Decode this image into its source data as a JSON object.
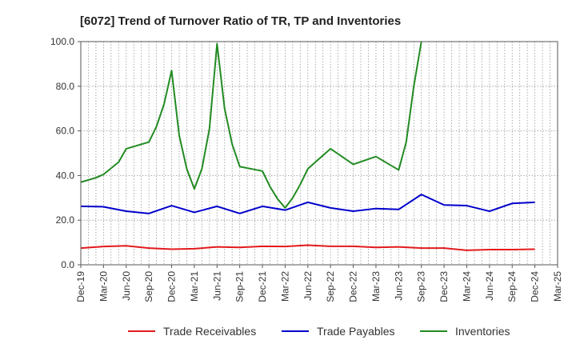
{
  "chart_data": {
    "type": "line",
    "title": "[6072]  Trend of Turnover Ratio of TR, TP and Inventories",
    "xlabel": "",
    "ylabel": "",
    "ylim": [
      0,
      100
    ],
    "grid": true,
    "legend_position": "bottom",
    "y_ticks": [
      "0.0",
      "20.0",
      "40.0",
      "60.0",
      "80.0",
      "100.0"
    ],
    "x_ticks": [
      "Dec-19",
      "Mar-20",
      "Jun-20",
      "Sep-20",
      "Dec-20",
      "Mar-21",
      "Jun-21",
      "Sep-21",
      "Dec-21",
      "Mar-22",
      "Jun-22",
      "Sep-22",
      "Dec-22",
      "Mar-23",
      "Jun-23",
      "Sep-23",
      "Dec-23",
      "Mar-24",
      "Jun-24",
      "Sep-24",
      "Dec-24",
      "Mar-25"
    ],
    "series": [
      {
        "name": "Trade Receivables",
        "color": "#e31a1c",
        "points": [
          [
            "Dec-19",
            7.5
          ],
          [
            "Mar-20",
            8.2
          ],
          [
            "Jun-20",
            8.5
          ],
          [
            "Sep-20",
            7.5
          ],
          [
            "Dec-20",
            7.0
          ],
          [
            "Mar-21",
            7.2
          ],
          [
            "Jun-21",
            8.0
          ],
          [
            "Sep-21",
            7.8
          ],
          [
            "Dec-21",
            8.3
          ],
          [
            "Mar-22",
            8.2
          ],
          [
            "Jun-22",
            8.8
          ],
          [
            "Sep-22",
            8.3
          ],
          [
            "Dec-22",
            8.3
          ],
          [
            "Mar-23",
            7.8
          ],
          [
            "Jun-23",
            8.0
          ],
          [
            "Sep-23",
            7.5
          ],
          [
            "Dec-23",
            7.5
          ],
          [
            "Mar-24",
            6.5
          ],
          [
            "Jun-24",
            6.8
          ],
          [
            "Sep-24",
            6.8
          ],
          [
            "Dec-24",
            7.0
          ]
        ]
      },
      {
        "name": "Trade Payables",
        "color": "#0000cc",
        "points": [
          [
            "Dec-19",
            26.2
          ],
          [
            "Mar-20",
            26.0
          ],
          [
            "Jun-20",
            24.0
          ],
          [
            "Sep-20",
            23.0
          ],
          [
            "Dec-20",
            26.5
          ],
          [
            "Mar-21",
            23.5
          ],
          [
            "Jun-21",
            26.2
          ],
          [
            "Sep-21",
            23.0
          ],
          [
            "Dec-21",
            26.2
          ],
          [
            "Mar-22",
            24.5
          ],
          [
            "Jun-22",
            28.0
          ],
          [
            "Sep-22",
            25.5
          ],
          [
            "Dec-22",
            24.0
          ],
          [
            "Mar-23",
            25.2
          ],
          [
            "Jun-23",
            24.8
          ],
          [
            "Sep-23",
            31.5
          ],
          [
            "Dec-23",
            26.8
          ],
          [
            "Mar-24",
            26.5
          ],
          [
            "Jun-24",
            24.0
          ],
          [
            "Sep-24",
            27.5
          ],
          [
            "Dec-24",
            28.0
          ]
        ]
      },
      {
        "name": "Inventories",
        "color": "#228b22",
        "points": [
          [
            "Dec-19",
            37.0
          ],
          [
            "Feb-20",
            39.0
          ],
          [
            "Mar-20",
            40.5
          ],
          [
            "May-20",
            46.0
          ],
          [
            "Jun-20",
            52.0
          ],
          [
            "Sep-20",
            55.0
          ],
          [
            "Oct-20",
            62.0
          ],
          [
            "Nov-20",
            72.0
          ],
          [
            "Dec-20",
            87.0
          ],
          [
            "Jan-21",
            58.0
          ],
          [
            "Feb-21",
            43.0
          ],
          [
            "Mar-21",
            34.0
          ],
          [
            "Apr-21",
            43.0
          ],
          [
            "May-21",
            61.0
          ],
          [
            "Jun-21",
            99.0
          ],
          [
            "Jul-21",
            70.0
          ],
          [
            "Aug-21",
            54.0
          ],
          [
            "Sep-21",
            44.0
          ],
          [
            "Dec-21",
            42.0
          ],
          [
            "Jan-22",
            35.0
          ],
          [
            "Feb-22",
            29.5
          ],
          [
            "Mar-22",
            25.5
          ],
          [
            "Apr-22",
            30.0
          ],
          [
            "May-22",
            36.0
          ],
          [
            "Jun-22",
            43.0
          ],
          [
            "Sep-22",
            52.0
          ],
          [
            "Dec-22",
            45.0
          ],
          [
            "Mar-23",
            48.5
          ],
          [
            "Jun-23",
            42.5
          ],
          [
            "Jul-23",
            55.0
          ],
          [
            "Aug-23",
            80.0
          ],
          [
            "Sep-23",
            100.0
          ]
        ]
      }
    ]
  }
}
